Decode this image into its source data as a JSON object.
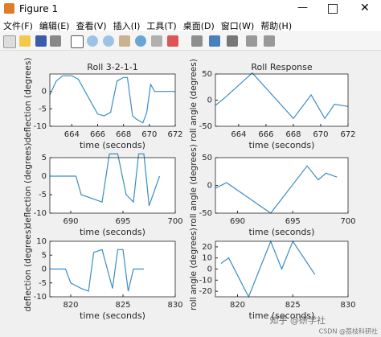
{
  "window": {
    "title": "Figure 1",
    "menu": [
      "文件(F)",
      "编辑(E)",
      "查看(V)",
      "插入(I)",
      "工具(T)",
      "桌面(D)",
      "窗口(W)",
      "帮助(H)"
    ]
  },
  "watermark": [
    "知乎 @研学社",
    "CSDN @荔枝科研社"
  ],
  "chart_data": [
    {
      "type": "line",
      "title": "Roll 3-2-1-1",
      "x_label": "time (seconds)",
      "y_label": "deflection (degrees)",
      "xlim": [
        662.3,
        672
      ],
      "xticks": [
        664,
        666,
        668,
        670,
        672
      ],
      "ylim": [
        -10,
        5
      ],
      "yticks": [
        -10,
        -5,
        0
      ],
      "series": [
        {
          "color": "#3b8dc4",
          "x": [
            662.3,
            662.8,
            663.3,
            664.0,
            664.5,
            666.0,
            666.5,
            667.0,
            667.5,
            668.0,
            668.3,
            668.7,
            669.0,
            669.5,
            669.8,
            670.1,
            670.4,
            672.0
          ],
          "values": [
            -1,
            3,
            4.5,
            4.5,
            3.5,
            -6.5,
            -7,
            -6,
            3,
            4,
            4,
            -7,
            -8,
            -9,
            -6,
            2,
            0,
            0
          ]
        }
      ]
    },
    {
      "type": "line",
      "title": "Roll Response",
      "x_label": "time (seconds)",
      "y_label": "roll angle (degrees)",
      "xlim": [
        662.3,
        672
      ],
      "xticks": [
        664,
        666,
        668,
        670,
        672
      ],
      "ylim": [
        -50,
        50
      ],
      "yticks": [
        -50,
        0,
        50
      ],
      "series": [
        {
          "color": "#3b8dc4",
          "x": [
            662.3,
            663,
            665,
            668,
            669.3,
            670.3,
            671,
            672
          ],
          "values": [
            -10,
            5,
            52,
            -35,
            10,
            -35,
            -8,
            -12
          ]
        }
      ]
    },
    {
      "type": "line",
      "x_label": "time (seconds)",
      "y_label": "deflection (degrees)",
      "xlim": [
        688,
        700
      ],
      "xticks": [
        690,
        695,
        700
      ],
      "ylim": [
        -10,
        5
      ],
      "yticks": [
        -10,
        -5,
        0,
        5
      ],
      "series": [
        {
          "color": "#3b8dc4",
          "x": [
            688,
            690.5,
            691,
            692,
            693,
            693.7,
            694.5,
            695.3,
            696,
            696.5,
            697,
            697.5,
            698.5
          ],
          "values": [
            0,
            0,
            -5,
            -6,
            -7,
            6,
            6,
            -5,
            -7,
            6,
            6,
            -8,
            0
          ]
        }
      ]
    },
    {
      "type": "line",
      "x_label": "time (seconds)",
      "y_label": "roll angle (degrees)",
      "xlim": [
        688,
        700
      ],
      "xticks": [
        690,
        695,
        700
      ],
      "ylim": [
        -50,
        50
      ],
      "yticks": [
        -50,
        0,
        50
      ],
      "series": [
        {
          "color": "#3b8dc4",
          "x": [
            688,
            689,
            693,
            696.3,
            697.3,
            698,
            699
          ],
          "values": [
            -5,
            5,
            -50,
            35,
            10,
            22,
            15
          ]
        }
      ]
    },
    {
      "type": "line",
      "x_label": "time (seconds)",
      "y_label": "deflection (degrees)",
      "xlim": [
        818,
        830
      ],
      "xticks": [
        820,
        825,
        830
      ],
      "ylim": [
        -10,
        10
      ],
      "yticks": [
        -10,
        -5,
        0,
        5,
        10
      ],
      "series": [
        {
          "color": "#3b8dc4",
          "x": [
            818,
            819.5,
            820,
            821,
            821.7,
            822.2,
            823,
            824,
            824.5,
            825,
            825.5,
            826,
            827
          ],
          "values": [
            0,
            0,
            -5,
            -7,
            -8,
            6,
            7,
            -7,
            7,
            7,
            -8,
            0,
            0
          ]
        }
      ]
    },
    {
      "type": "line",
      "x_label": "time (seconds)",
      "y_label": "roll angle (degrees)",
      "xlim": [
        818,
        830
      ],
      "xticks": [
        820,
        825,
        830
      ],
      "ylim": [
        -25,
        25
      ],
      "yticks": [
        -20,
        -10,
        0,
        10,
        20
      ],
      "series": [
        {
          "color": "#3b8dc4",
          "x": [
            818.5,
            819.2,
            821,
            823,
            824,
            825,
            827
          ],
          "values": [
            5,
            10,
            -25,
            25,
            0,
            25,
            -5
          ]
        }
      ]
    }
  ]
}
